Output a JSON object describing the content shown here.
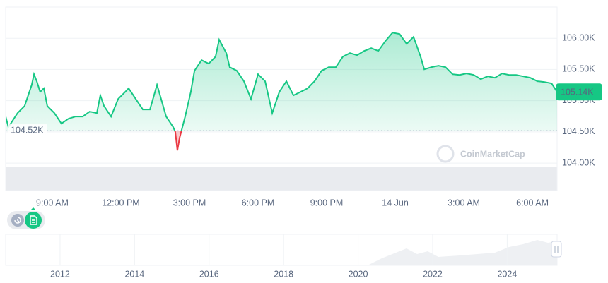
{
  "chart_data": [
    {
      "type": "line",
      "x": [
        6.96,
        7.08,
        7.48,
        7.79,
        8.1,
        8.2,
        8.32,
        8.47,
        8.63,
        8.78,
        9.09,
        9.4,
        9.71,
        10.02,
        10.33,
        10.64,
        10.95,
        11.1,
        11.26,
        11.57,
        11.88,
        12.19,
        12.34,
        12.65,
        12.96,
        13.27,
        13.58,
        13.67,
        13.98,
        14.29,
        14.38,
        14.47,
        14.57,
        14.81,
        15.06,
        15.22,
        15.53,
        15.84,
        16.14,
        16.3,
        16.61,
        16.76,
        17.07,
        17.38,
        17.69,
        18.0,
        18.31,
        18.62,
        18.93,
        19.24,
        19.55,
        19.86,
        20.17,
        20.47,
        20.78,
        21.09,
        21.4,
        21.71,
        22.02,
        22.33,
        22.64,
        22.95,
        23.26,
        23.57,
        23.88,
        24.19,
        24.5,
        24.8,
        25.11,
        25.27,
        25.58,
        25.89,
        26.2,
        26.51,
        26.81,
        27.12,
        27.43,
        27.74,
        28.05,
        28.36,
        28.67,
        28.98,
        29.29,
        29.6,
        29.91,
        30.22,
        30.53,
        30.84,
        31.08
      ],
      "series": [
        {
          "color": "#16c784",
          "down_color": "#ea3943",
          "values": [
            104.746,
            104.576,
            104.802,
            104.915,
            105.254,
            105.424,
            105.311,
            105.141,
            105.198,
            104.915,
            104.802,
            104.633,
            104.712,
            104.746,
            104.746,
            104.825,
            104.802,
            105.085,
            104.915,
            104.746,
            105.028,
            105.141,
            105.198,
            105.028,
            104.859,
            104.859,
            105.254,
            105.141,
            104.746,
            104.576,
            104.497,
            104.203,
            104.407,
            104.746,
            105.141,
            105.48,
            105.65,
            105.593,
            105.706,
            105.977,
            105.763,
            105.537,
            105.48,
            105.311,
            105.028,
            105.424,
            105.311,
            104.802,
            105.141,
            105.311,
            105.085,
            105.141,
            105.198,
            105.311,
            105.48,
            105.537,
            105.537,
            105.706,
            105.763,
            105.729,
            105.797,
            105.842,
            105.797,
            105.955,
            106.09,
            106.068,
            105.91,
            106.023,
            105.706,
            105.503,
            105.537,
            105.559,
            105.537,
            105.424,
            105.412,
            105.435,
            105.412,
            105.345,
            105.39,
            105.367,
            105.435,
            105.412,
            105.412,
            105.39,
            105.367,
            105.311,
            105.299,
            105.277,
            105.141
          ]
        }
      ],
      "xlim": [
        6.96,
        31.08
      ],
      "xticks": [
        {
          "value": 9,
          "label": "9:00 AM"
        },
        {
          "value": 12,
          "label": "12:00 PM"
        },
        {
          "value": 15,
          "label": "3:00 PM"
        },
        {
          "value": 18,
          "label": "6:00 PM"
        },
        {
          "value": 21,
          "label": "9:00 PM"
        },
        {
          "value": 24,
          "label": "14 Jun"
        },
        {
          "value": 27,
          "label": "3:00 AM"
        },
        {
          "value": 30,
          "label": "6:00 AM"
        }
      ],
      "ylim": [
        103.56,
        106.5
      ],
      "yticks": [
        {
          "value": 104,
          "label": "104.00K"
        },
        {
          "value": 104.5,
          "label": "104.50K"
        },
        {
          "value": 105,
          "label": "105.00K"
        },
        {
          "value": 105.5,
          "label": "105.50K"
        },
        {
          "value": 106,
          "label": "106.00K"
        }
      ],
      "grid": true,
      "baseline": {
        "value": 104.52,
        "label": "104.52K"
      },
      "current": {
        "value": 105.14,
        "label": "105.14K"
      },
      "watermark": "CoinMarketCap"
    },
    {
      "type": "navigator",
      "xlim": [
        2010.54,
        2025.34
      ],
      "xticks": [
        2012,
        2014,
        2016,
        2018,
        2020,
        2022,
        2024
      ]
    }
  ]
}
